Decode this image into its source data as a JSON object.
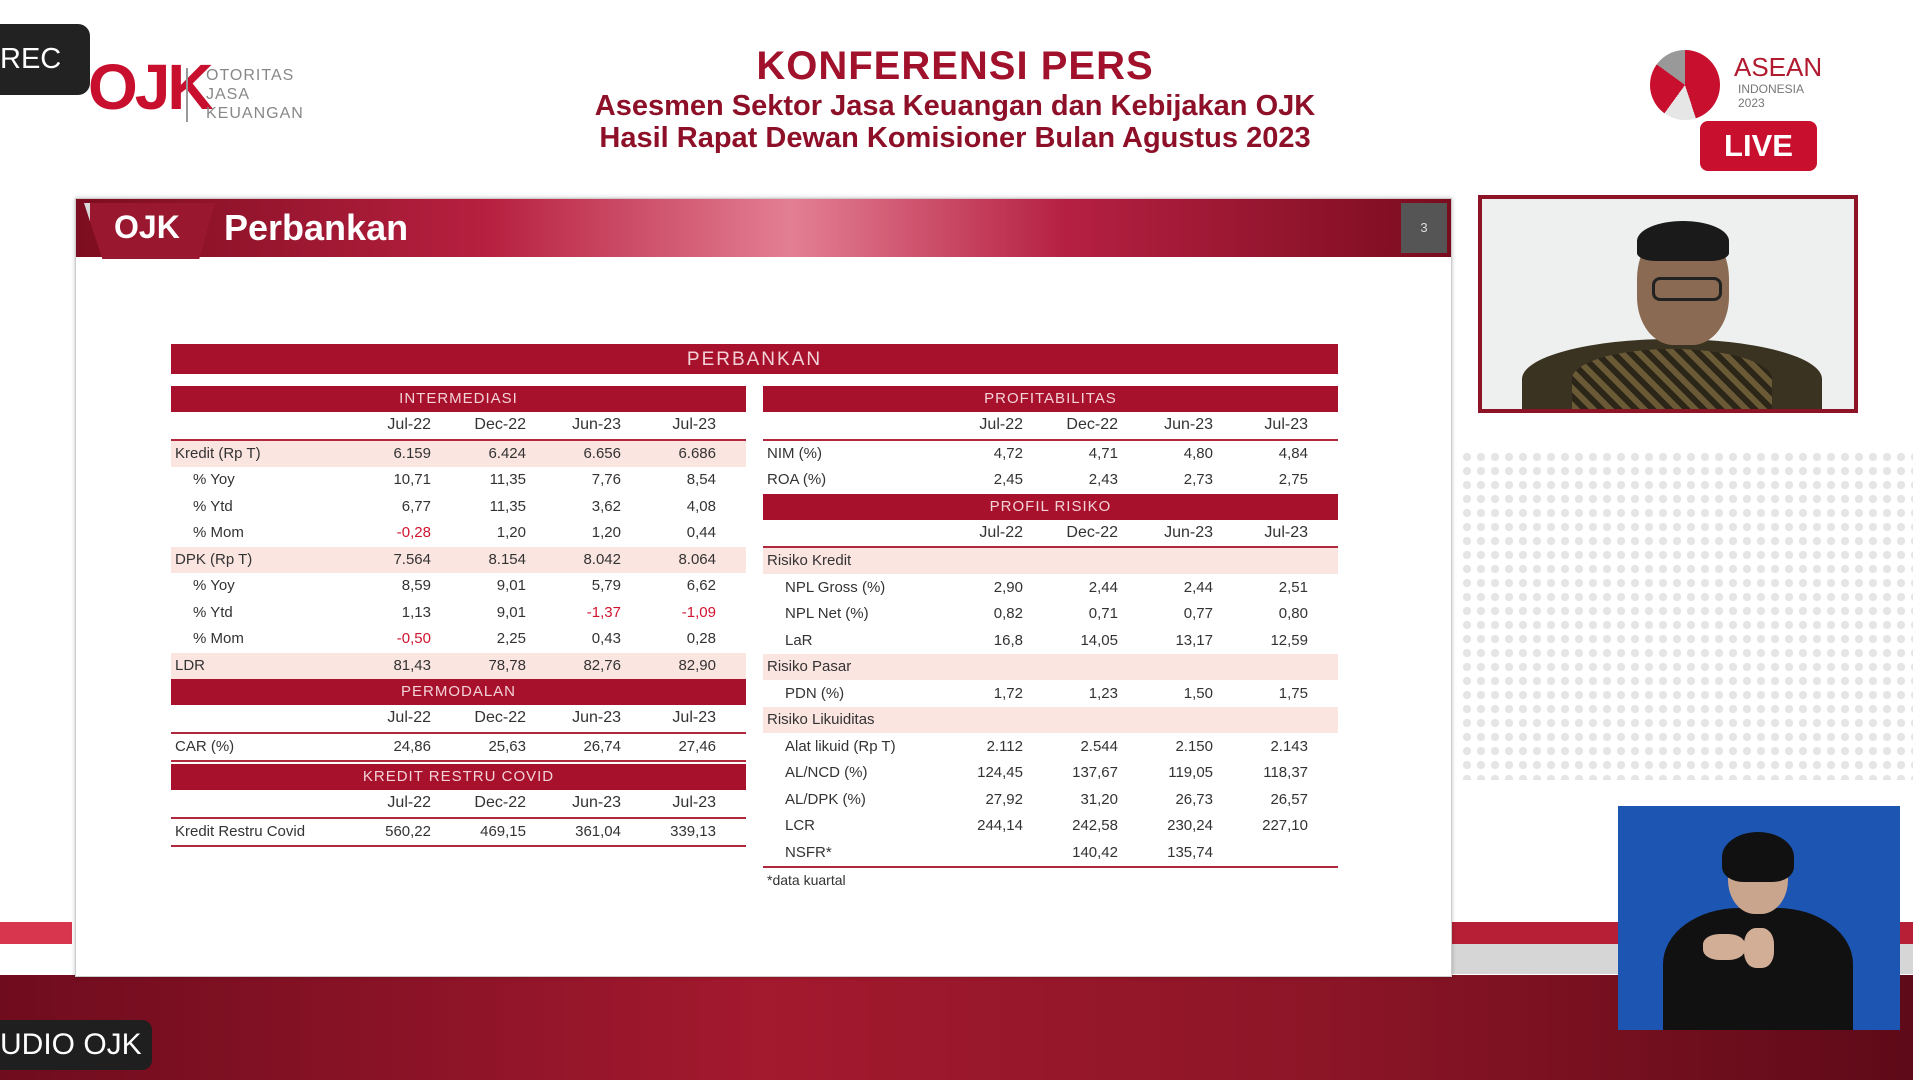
{
  "overlay": {
    "rec_label": "REC",
    "studio_label": "UDIO OJK",
    "live_label": "LIVE"
  },
  "header": {
    "logo_mark": "OJK",
    "logo_text": [
      "OTORITAS",
      "JASA",
      "KEUANGAN"
    ],
    "title": "KONFERENSI PERS",
    "subtitle1": "Asesmen Sektor Jasa Keuangan dan Kebijakan OJK",
    "subtitle2": "Hasil Rapat Dewan Komisioner Bulan Agustus 2023",
    "asean_title": "ASEAN",
    "asean_sub": [
      "INDONESIA",
      "2023"
    ]
  },
  "slide": {
    "logo_mark": "OJK",
    "title": "Perbankan",
    "page_number": "3",
    "table_title": "PERBANKAN",
    "footnote": "*data kuartal",
    "periods": [
      "Jul-22",
      "Dec-22",
      "Jun-23",
      "Jul-23"
    ],
    "intermediasi": {
      "title": "INTERMEDIASI",
      "rows": [
        {
          "label": "Kredit (Rp T)",
          "values": [
            "6.159",
            "6.424",
            "6.656",
            "6.686"
          ],
          "shaded": true
        },
        {
          "label": "% Yoy",
          "values": [
            "10,71",
            "11,35",
            "7,76",
            "8,54"
          ],
          "indent": true
        },
        {
          "label": "% Ytd",
          "values": [
            "6,77",
            "11,35",
            "3,62",
            "4,08"
          ],
          "indent": true
        },
        {
          "label": "% Mom",
          "values": [
            "-0,28",
            "1,20",
            "1,20",
            "0,44"
          ],
          "indent": true
        },
        {
          "label": "DPK (Rp T)",
          "values": [
            "7.564",
            "8.154",
            "8.042",
            "8.064"
          ],
          "shaded": true
        },
        {
          "label": "% Yoy",
          "values": [
            "8,59",
            "9,01",
            "5,79",
            "6,62"
          ],
          "indent": true
        },
        {
          "label": "% Ytd",
          "values": [
            "1,13",
            "9,01",
            "-1,37",
            "-1,09"
          ],
          "indent": true
        },
        {
          "label": "% Mom",
          "values": [
            "-0,50",
            "2,25",
            "0,43",
            "0,28"
          ],
          "indent": true
        },
        {
          "label": "LDR",
          "values": [
            "81,43",
            "78,78",
            "82,76",
            "82,90"
          ],
          "shaded": true
        }
      ]
    },
    "permodalan": {
      "title": "PERMODALAN",
      "rows": [
        {
          "label": "CAR (%)",
          "values": [
            "24,86",
            "25,63",
            "26,74",
            "27,46"
          ]
        }
      ]
    },
    "kredit_restru": {
      "title": "KREDIT RESTRU COVID",
      "rows": [
        {
          "label": "Kredit Restru Covid",
          "values": [
            "560,22",
            "469,15",
            "361,04",
            "339,13"
          ]
        }
      ]
    },
    "profitabilitas": {
      "title": "PROFITABILITAS",
      "rows": [
        {
          "label": "NIM (%)",
          "values": [
            "4,72",
            "4,71",
            "4,80",
            "4,84"
          ]
        },
        {
          "label": "ROA (%)",
          "values": [
            "2,45",
            "2,43",
            "2,73",
            "2,75"
          ]
        }
      ]
    },
    "profil_risiko": {
      "title": "PROFIL RISIKO",
      "rows": [
        {
          "label": "Risiko Kredit",
          "values": [
            "",
            "",
            "",
            ""
          ],
          "shaded": true
        },
        {
          "label": "NPL Gross (%)",
          "values": [
            "2,90",
            "2,44",
            "2,44",
            "2,51"
          ],
          "indent": true
        },
        {
          "label": "NPL Net (%)",
          "values": [
            "0,82",
            "0,71",
            "0,77",
            "0,80"
          ],
          "indent": true
        },
        {
          "label": "LaR",
          "values": [
            "16,8",
            "14,05",
            "13,17",
            "12,59"
          ],
          "indent": true
        },
        {
          "label": "Risiko Pasar",
          "values": [
            "",
            "",
            "",
            ""
          ],
          "shaded": true
        },
        {
          "label": "PDN (%)",
          "values": [
            "1,72",
            "1,23",
            "1,50",
            "1,75"
          ],
          "indent": true
        },
        {
          "label": "Risiko Likuiditas",
          "values": [
            "",
            "",
            "",
            ""
          ],
          "shaded": true
        },
        {
          "label": "Alat likuid (Rp T)",
          "values": [
            "2.112",
            "2.544",
            "2.150",
            "2.143"
          ],
          "indent": true
        },
        {
          "label": "AL/NCD (%)",
          "values": [
            "124,45",
            "137,67",
            "119,05",
            "118,37"
          ],
          "indent": true
        },
        {
          "label": "AL/DPK (%)",
          "values": [
            "27,92",
            "31,20",
            "26,73",
            "26,57"
          ],
          "indent": true
        },
        {
          "label": "LCR",
          "values": [
            "244,14",
            "242,58",
            "230,24",
            "227,10"
          ],
          "indent": true
        },
        {
          "label": "NSFR*",
          "values": [
            "",
            "140,42",
            "135,74",
            ""
          ],
          "indent": true
        }
      ]
    }
  },
  "colors": {
    "brand_red": "#a7112b",
    "negative": "#d0142f",
    "row_shade": "#fbe5e1"
  }
}
